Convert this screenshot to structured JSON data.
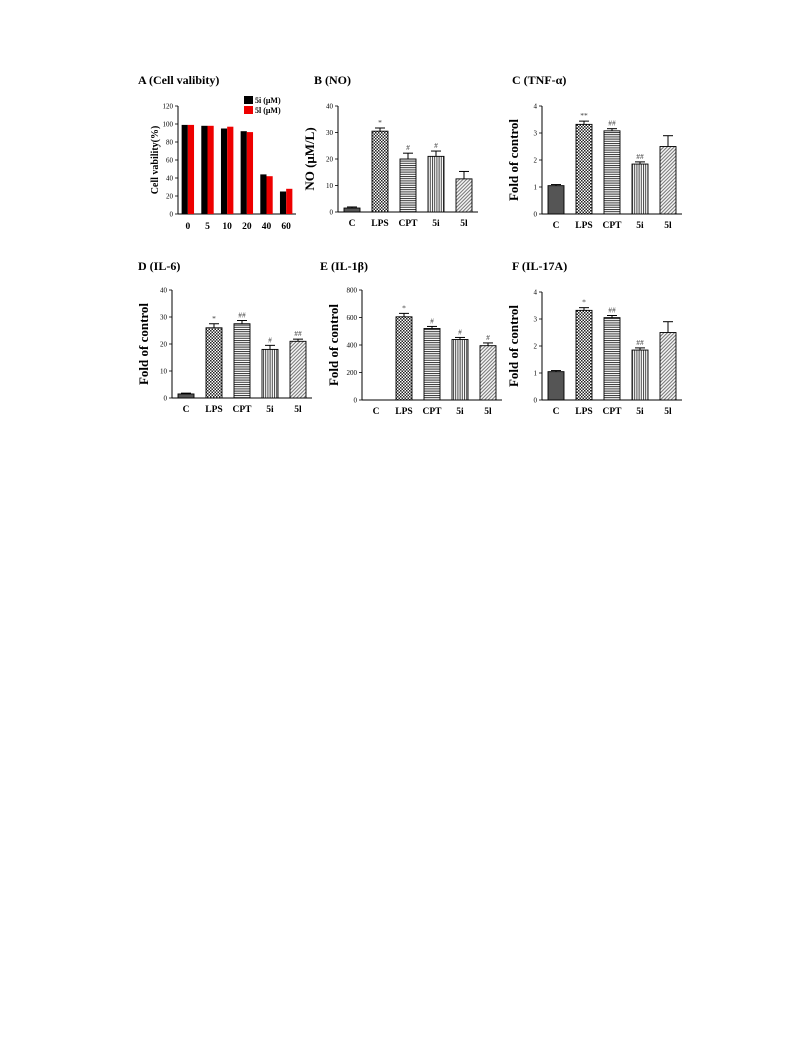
{
  "chart_data": [
    {
      "id": "A",
      "type": "bar",
      "title": "A (Cell valibity)",
      "ylabel": "Cell vability(%)",
      "ylim": [
        0,
        120
      ],
      "yticks": [
        0,
        20,
        40,
        60,
        80,
        100,
        120
      ],
      "categories": [
        "0",
        "5",
        "10",
        "20",
        "40",
        "60"
      ],
      "series": [
        {
          "name": "5i (μM)",
          "color": "#000000",
          "values": [
            99,
            98,
            95,
            92,
            44,
            25
          ]
        },
        {
          "name": "5l (μM)",
          "color": "#ee0000",
          "values": [
            99,
            98,
            97,
            91,
            42,
            28
          ]
        }
      ],
      "legend": "top-right"
    },
    {
      "id": "B",
      "type": "bar",
      "title": "B (NO)",
      "ylabel": "NO (μM/L)",
      "ylim": [
        0,
        40
      ],
      "yticks": [
        0,
        10,
        20,
        30,
        40
      ],
      "categories": [
        "C",
        "LPS",
        "CPT",
        "5i",
        "5l"
      ],
      "values": [
        1.5,
        30.5,
        20,
        21,
        12.5
      ],
      "errors": [
        0.4,
        1.2,
        2.2,
        2.0,
        2.8
      ],
      "annotations": [
        "",
        "*",
        "#",
        "#",
        ""
      ],
      "patterns": [
        "dark",
        "checker",
        "hlines",
        "vlines",
        "hatch"
      ]
    },
    {
      "id": "C",
      "type": "bar",
      "title": "C (TNF-α)",
      "ylabel": "Fold of  control",
      "ylim": [
        0,
        4
      ],
      "yticks": [
        0,
        1,
        2,
        3,
        4
      ],
      "categories": [
        "C",
        "LPS",
        "CPT",
        "5i",
        "5l"
      ],
      "values": [
        1.05,
        3.32,
        3.08,
        1.85,
        2.5
      ],
      "errors": [
        0.04,
        0.12,
        0.08,
        0.08,
        0.4
      ],
      "annotations": [
        "",
        "**",
        "##",
        "##",
        ""
      ],
      "patterns": [
        "dark",
        "checker",
        "hlines",
        "vlines",
        "hatch"
      ]
    },
    {
      "id": "D",
      "type": "bar",
      "title": "D (IL-6)",
      "ylabel": "Fold of control",
      "ylim": [
        0,
        40
      ],
      "yticks": [
        0,
        10,
        20,
        30,
        40
      ],
      "categories": [
        "C",
        "LPS",
        "CPT",
        "5i",
        "5l"
      ],
      "values": [
        1.5,
        26,
        27.5,
        18,
        21
      ],
      "errors": [
        0.3,
        1.5,
        1.2,
        1.5,
        0.8
      ],
      "annotations": [
        "",
        "*",
        "##",
        "#",
        "##"
      ],
      "patterns": [
        "dark",
        "checker",
        "hlines",
        "vlines",
        "hatch"
      ]
    },
    {
      "id": "E",
      "type": "bar",
      "title": "E (IL-1β)",
      "ylabel": "Fold of control",
      "ylim": [
        0,
        800
      ],
      "yticks": [
        0,
        200,
        400,
        600,
        800
      ],
      "categories": [
        "C",
        "LPS",
        "CPT",
        "5i",
        "5l"
      ],
      "values": [
        0,
        605,
        520,
        440,
        395
      ],
      "errors": [
        0,
        25,
        15,
        15,
        20
      ],
      "annotations": [
        "",
        "*",
        "#",
        "#",
        "#"
      ],
      "patterns": [
        "dark",
        "checker",
        "hlines",
        "vlines",
        "hatch"
      ]
    },
    {
      "id": "F",
      "type": "bar",
      "title": "F (IL-17A)",
      "ylabel": "Fold of control",
      "ylim": [
        0,
        4
      ],
      "yticks": [
        0,
        1,
        2,
        3,
        4
      ],
      "categories": [
        "C",
        "LPS",
        "CPT",
        "5i",
        "5l"
      ],
      "values": [
        1.05,
        3.32,
        3.05,
        1.85,
        2.5
      ],
      "errors": [
        0.04,
        0.1,
        0.08,
        0.08,
        0.4
      ],
      "annotations": [
        "",
        "*",
        "##",
        "##",
        ""
      ],
      "patterns": [
        "dark",
        "checker",
        "hlines",
        "vlines",
        "hatch"
      ]
    }
  ]
}
